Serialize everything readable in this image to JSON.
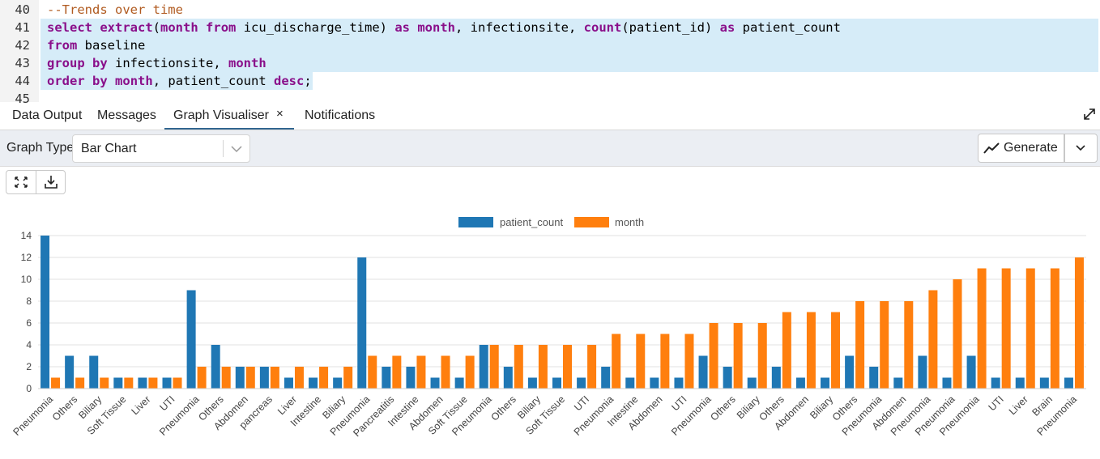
{
  "editor": {
    "lines": [
      {
        "num": "40",
        "tokens": [
          {
            "t": "--Trends over time",
            "c": "cm"
          }
        ],
        "hl": false
      },
      {
        "num": "41",
        "tokens": [
          {
            "t": "select",
            "c": "kw"
          },
          {
            "t": " "
          },
          {
            "t": "extract",
            "c": "fn"
          },
          {
            "t": "("
          },
          {
            "t": "month",
            "c": "kw"
          },
          {
            "t": " "
          },
          {
            "t": "from",
            "c": "kw"
          },
          {
            "t": " icu_discharge_time) "
          },
          {
            "t": "as",
            "c": "kw"
          },
          {
            "t": " "
          },
          {
            "t": "month",
            "c": "kw"
          },
          {
            "t": ", infectionsite, "
          },
          {
            "t": "count",
            "c": "fn"
          },
          {
            "t": "(patient_id) "
          },
          {
            "t": "as",
            "c": "kw"
          },
          {
            "t": " patient_count"
          }
        ],
        "hl": true
      },
      {
        "num": "42",
        "tokens": [
          {
            "t": "from",
            "c": "kw"
          },
          {
            "t": " baseline"
          }
        ],
        "hl": true
      },
      {
        "num": "43",
        "tokens": [
          {
            "t": "group",
            "c": "kw"
          },
          {
            "t": " "
          },
          {
            "t": "by",
            "c": "kw"
          },
          {
            "t": " infectionsite, "
          },
          {
            "t": "month",
            "c": "kw"
          }
        ],
        "hl": true
      },
      {
        "num": "44",
        "tokens": [
          {
            "t": "order",
            "c": "kw"
          },
          {
            "t": " "
          },
          {
            "t": "by",
            "c": "kw"
          },
          {
            "t": " "
          },
          {
            "t": "month",
            "c": "kw"
          },
          {
            "t": ", patient_count "
          },
          {
            "t": "desc",
            "c": "kw"
          },
          {
            "t": ";"
          }
        ],
        "hl": true
      },
      {
        "num": "45",
        "tokens": [],
        "hl": false
      }
    ]
  },
  "tabs": {
    "data_output": "Data Output",
    "messages": "Messages",
    "graph_visualiser": "Graph Visualiser",
    "close": "×",
    "notifications": "Notifications"
  },
  "toolbar": {
    "graph_type_label": "Graph Type",
    "graph_type_value": "Bar Chart",
    "generate_label": "Generate"
  },
  "colors": {
    "patient_count": "#1f77b4",
    "month": "#ff7f0e",
    "accent": "#326690"
  },
  "chart_data": {
    "type": "bar",
    "legend_placement": "top-center",
    "grid": true,
    "ylim": [
      0,
      14
    ],
    "yticks": [
      0,
      2,
      4,
      6,
      8,
      10,
      12,
      14
    ],
    "categories": [
      "Pneumonia",
      "Others",
      "Biliary",
      "Soft Tissue",
      "Liver",
      "UTI",
      "Pneumonia",
      "Others",
      "Abdomen",
      "pancreas",
      "Liver",
      "Intestine",
      "Biliary",
      "Pneumonia",
      "Pancreatitis",
      "Intestine",
      "Abdomen",
      "Soft Tissue",
      "Pneumonia",
      "Others",
      "Biliary",
      "Soft Tissue",
      "UTI",
      "Pneumonia",
      "Intestine",
      "Abdomen",
      "UTI",
      "Pneumonia",
      "Others",
      "Biliary",
      "Others",
      "Abdomen",
      "Biliary",
      "Others",
      "Pneumonia",
      "Abdomen",
      "Pneumonia",
      "Pneumonia",
      "Pneumonia",
      "UTI",
      "Liver",
      "Brain",
      "Pneumonia"
    ],
    "series": [
      {
        "name": "patient_count",
        "values": [
          14,
          3,
          3,
          1,
          1,
          1,
          9,
          4,
          2,
          2,
          1,
          1,
          1,
          12,
          2,
          2,
          1,
          1,
          4,
          2,
          1,
          1,
          1,
          2,
          1,
          1,
          1,
          3,
          2,
          1,
          2,
          1,
          1,
          3,
          2,
          1,
          3,
          1,
          3,
          1,
          1,
          1,
          1
        ]
      },
      {
        "name": "month",
        "values": [
          1,
          1,
          1,
          1,
          1,
          1,
          2,
          2,
          2,
          2,
          2,
          2,
          2,
          3,
          3,
          3,
          3,
          3,
          4,
          4,
          4,
          4,
          4,
          5,
          5,
          5,
          5,
          6,
          6,
          6,
          7,
          7,
          7,
          8,
          8,
          8,
          9,
          10,
          11,
          11,
          11,
          11,
          12
        ]
      }
    ]
  }
}
